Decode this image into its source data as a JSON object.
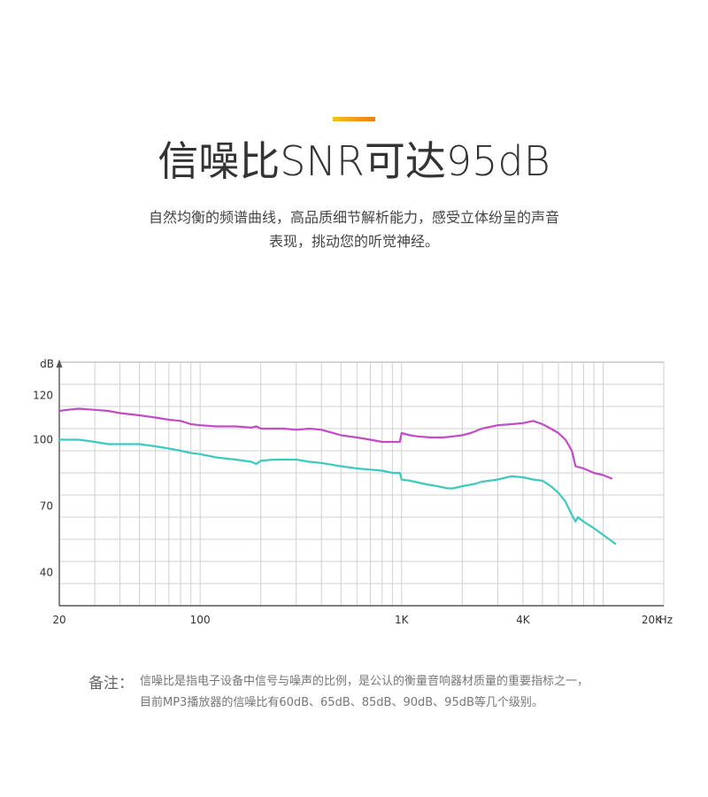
{
  "header": {
    "title": "信噪比SNR可达95dB",
    "subtitle_lines": [
      "自然均衡的频谱曲线，高品质细节解析能力，感受立体纷呈的声音",
      "表现，挑动您的听觉神经。"
    ],
    "accent_colors": [
      "#f6c21b",
      "#ef7b1a"
    ]
  },
  "note": {
    "label": "备注：",
    "lines": [
      "信噪比是指电子设备中信号与噪声的比例，是公认的衡量音响器材质量的重要指标之一，",
      "目前MP3播放器的信噪比有60dB、65dB、85dB、90dB、95dB等几个级别。"
    ]
  },
  "chart_data": {
    "type": "line",
    "title": "",
    "xlabel": "Hz",
    "ylabel": "dB",
    "x_scale": "log",
    "xlim": [
      20,
      20000
    ],
    "ylim": [
      25,
      135
    ],
    "grid": true,
    "x_ticks": [
      {
        "value": 20,
        "label": "20"
      },
      {
        "value": 100,
        "label": "100"
      },
      {
        "value": 1000,
        "label": "1K"
      },
      {
        "value": 4000,
        "label": "4K"
      },
      {
        "value": 20000,
        "label": "20K"
      }
    ],
    "y_ticks": [
      {
        "value": 40,
        "label": "40"
      },
      {
        "value": 70,
        "label": "70"
      },
      {
        "value": 100,
        "label": "100"
      },
      {
        "value": 120,
        "label": "120"
      }
    ],
    "series": [
      {
        "color": "#c24bc6",
        "points": [
          [
            20,
            113
          ],
          [
            22,
            113.5
          ],
          [
            25,
            114
          ],
          [
            30,
            113.5
          ],
          [
            35,
            113
          ],
          [
            40,
            112
          ],
          [
            50,
            111
          ],
          [
            60,
            110
          ],
          [
            70,
            109
          ],
          [
            80,
            108.5
          ],
          [
            90,
            107
          ],
          [
            100,
            106.5
          ],
          [
            120,
            106
          ],
          [
            150,
            106
          ],
          [
            180,
            105.5
          ],
          [
            190,
            106
          ],
          [
            200,
            105
          ],
          [
            230,
            105
          ],
          [
            260,
            105
          ],
          [
            300,
            104.5
          ],
          [
            350,
            105
          ],
          [
            400,
            104.5
          ],
          [
            500,
            102
          ],
          [
            600,
            101
          ],
          [
            700,
            100
          ],
          [
            800,
            99
          ],
          [
            900,
            99
          ],
          [
            980,
            99
          ],
          [
            1000,
            103
          ],
          [
            1100,
            102
          ],
          [
            1200,
            101.5
          ],
          [
            1400,
            101
          ],
          [
            1600,
            101
          ],
          [
            1800,
            101.5
          ],
          [
            2000,
            102
          ],
          [
            2200,
            103
          ],
          [
            2500,
            105
          ],
          [
            3000,
            106.5
          ],
          [
            3500,
            107
          ],
          [
            4000,
            107.5
          ],
          [
            4500,
            108.5
          ],
          [
            5000,
            107
          ],
          [
            5500,
            105
          ],
          [
            6000,
            103
          ],
          [
            6500,
            100
          ],
          [
            7000,
            95
          ],
          [
            7300,
            88
          ],
          [
            8000,
            87
          ],
          [
            9000,
            85
          ],
          [
            10000,
            84
          ],
          [
            11000,
            82.5
          ]
        ]
      },
      {
        "color": "#3cc9bf",
        "points": [
          [
            20,
            100
          ],
          [
            22,
            100
          ],
          [
            25,
            100
          ],
          [
            30,
            99
          ],
          [
            35,
            98
          ],
          [
            40,
            98
          ],
          [
            50,
            98
          ],
          [
            60,
            97
          ],
          [
            70,
            96
          ],
          [
            80,
            95
          ],
          [
            90,
            94
          ],
          [
            100,
            93.5
          ],
          [
            120,
            92
          ],
          [
            150,
            91
          ],
          [
            180,
            90
          ],
          [
            190,
            89
          ],
          [
            200,
            90.5
          ],
          [
            230,
            91
          ],
          [
            260,
            91
          ],
          [
            300,
            91
          ],
          [
            350,
            90
          ],
          [
            400,
            89.5
          ],
          [
            500,
            88
          ],
          [
            600,
            87
          ],
          [
            700,
            86.5
          ],
          [
            800,
            86
          ],
          [
            900,
            85
          ],
          [
            980,
            85
          ],
          [
            1000,
            82
          ],
          [
            1100,
            81.5
          ],
          [
            1300,
            80
          ],
          [
            1500,
            79
          ],
          [
            1700,
            78
          ],
          [
            1800,
            78
          ],
          [
            2000,
            79
          ],
          [
            2300,
            80
          ],
          [
            2500,
            81
          ],
          [
            3000,
            82
          ],
          [
            3500,
            83.5
          ],
          [
            4000,
            83
          ],
          [
            4500,
            82
          ],
          [
            5000,
            81.5
          ],
          [
            5500,
            79
          ],
          [
            6000,
            76
          ],
          [
            6500,
            72
          ],
          [
            7000,
            66
          ],
          [
            7300,
            63
          ],
          [
            7500,
            65
          ],
          [
            8000,
            63
          ],
          [
            9000,
            60
          ],
          [
            10000,
            57
          ],
          [
            11500,
            53
          ]
        ]
      }
    ]
  }
}
